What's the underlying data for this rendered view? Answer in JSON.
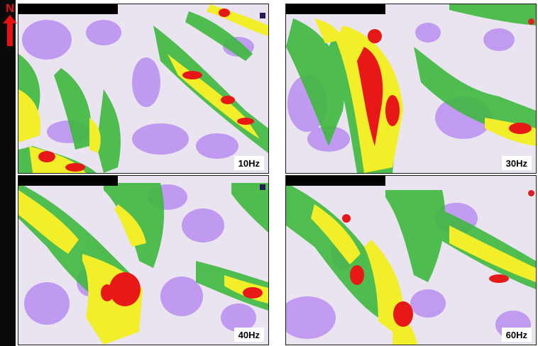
{
  "north_indicator": {
    "letter": "N",
    "icon": "north-arrow-icon",
    "color": "#e81010"
  },
  "panels": [
    {
      "id": "10hz",
      "label": "10Hz"
    },
    {
      "id": "30hz",
      "label": "30Hz"
    },
    {
      "id": "40hz",
      "label": "40Hz"
    },
    {
      "id": "60hz",
      "label": "60Hz"
    }
  ],
  "palette": {
    "background": "#e9e4f0",
    "violet": "#b88ef0",
    "green": "#3fb83f",
    "yellow": "#f2ee2a",
    "red": "#e81818"
  }
}
